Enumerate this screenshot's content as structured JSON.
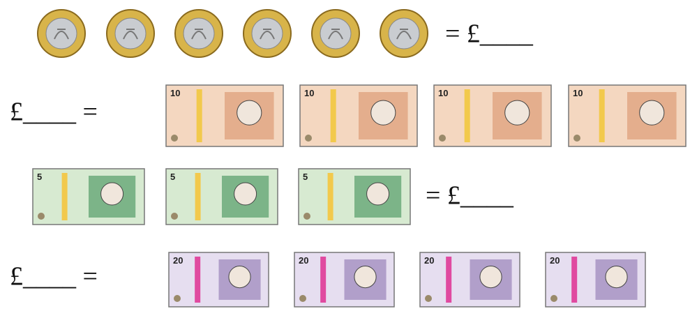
{
  "rows": [
    {
      "text": "= £____"
    },
    {
      "text": "£____ =",
      "note_label": "10"
    },
    {
      "text": "= £____",
      "note_label": "5"
    },
    {
      "text": "£____ =",
      "note_label": "20"
    }
  ]
}
